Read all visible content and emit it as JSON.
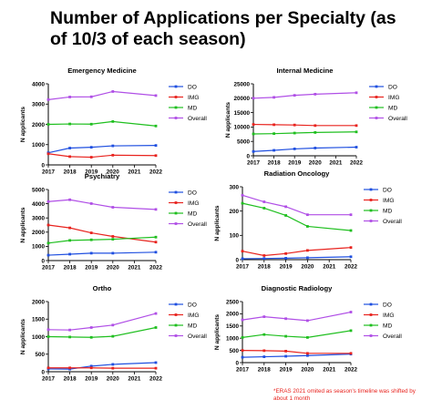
{
  "title": "Number of Applications per Specialty (as of 10/3 of each season)",
  "footnote": "*ERAS 2021 omited as  season's timeline was shifted by about 1 month",
  "colors": {
    "DO": "#1f4fe0",
    "IMG": "#e8231e",
    "MD": "#1fbf1f",
    "Overall": "#b04fe6"
  },
  "chart_data": [
    {
      "type": "line",
      "title": "Emergency Medicine",
      "ylabel": "N applicants",
      "x": [
        2017,
        2018,
        2019,
        2020,
        2022
      ],
      "xticks": [
        "2017",
        "2018",
        "2019",
        "2020",
        "2021",
        "2022"
      ],
      "xlim": [
        2017,
        2022
      ],
      "ylim": [
        0,
        4000
      ],
      "yticks": [
        "0",
        "1000",
        "2000",
        "3000",
        "4000"
      ],
      "grid": false,
      "legend": "right",
      "series": [
        {
          "name": "DO",
          "values": [
            600,
            830,
            870,
            940,
            960
          ]
        },
        {
          "name": "IMG",
          "values": [
            550,
            410,
            380,
            480,
            460
          ]
        },
        {
          "name": "MD",
          "values": [
            2000,
            2020,
            2010,
            2140,
            1920
          ]
        },
        {
          "name": "Overall",
          "values": [
            3220,
            3350,
            3360,
            3620,
            3420
          ]
        }
      ]
    },
    {
      "type": "line",
      "title": "Internal Medicine",
      "ylabel": "N applicants",
      "x": [
        2017,
        2018,
        2019,
        2020,
        2022
      ],
      "xticks": [
        "2017",
        "2018",
        "2019",
        "2020",
        "2021",
        "2022"
      ],
      "xlim": [
        2017,
        2022
      ],
      "ylim": [
        0,
        25000
      ],
      "yticks": [
        "0",
        "5000",
        "10000",
        "15000",
        "20000",
        "25000"
      ],
      "grid": false,
      "legend": "right",
      "series": [
        {
          "name": "DO",
          "values": [
            1500,
            1900,
            2400,
            2700,
            3000
          ]
        },
        {
          "name": "IMG",
          "values": [
            10900,
            10800,
            10700,
            10500,
            10500
          ]
        },
        {
          "name": "MD",
          "values": [
            7600,
            7700,
            7900,
            8100,
            8300
          ]
        },
        {
          "name": "Overall",
          "values": [
            20000,
            20300,
            21000,
            21400,
            21900
          ]
        }
      ]
    },
    {
      "type": "line",
      "title": "Psychiatry",
      "ylabel": "N applicants",
      "x": [
        2017,
        2018,
        2019,
        2020,
        2022
      ],
      "xticks": [
        "2017",
        "2018",
        "2019",
        "2020",
        "2021",
        "2022"
      ],
      "xlim": [
        2017,
        2022
      ],
      "ylim": [
        0,
        5000
      ],
      "yticks": [
        "0",
        "1000",
        "2000",
        "3000",
        "4000",
        "5000"
      ],
      "grid": false,
      "legend": "right",
      "series": [
        {
          "name": "DO",
          "values": [
            380,
            450,
            520,
            520,
            590
          ]
        },
        {
          "name": "IMG",
          "values": [
            2500,
            2300,
            1950,
            1700,
            1300
          ]
        },
        {
          "name": "MD",
          "values": [
            1230,
            1420,
            1460,
            1500,
            1650
          ]
        },
        {
          "name": "Overall",
          "values": [
            4150,
            4280,
            4010,
            3750,
            3600
          ]
        }
      ]
    },
    {
      "type": "line",
      "title": "Radiation Oncology",
      "ylabel": "N applicants",
      "x": [
        2017,
        2018,
        2019,
        2020,
        2022
      ],
      "xticks": [
        "2017",
        "2018",
        "2019",
        "2020",
        "2021",
        "2022"
      ],
      "xlim": [
        2017,
        2022
      ],
      "ylim": [
        0,
        300
      ],
      "yticks": [
        "0",
        "100",
        "200",
        "300"
      ],
      "grid": false,
      "legend": "right",
      "series": [
        {
          "name": "DO",
          "values": [
            4,
            5,
            6,
            8,
            12
          ]
        },
        {
          "name": "IMG",
          "values": [
            35,
            17,
            25,
            38,
            50
          ]
        },
        {
          "name": "MD",
          "values": [
            232,
            212,
            182,
            137,
            120
          ]
        },
        {
          "name": "Overall",
          "values": [
            265,
            238,
            218,
            185,
            185
          ]
        }
      ]
    },
    {
      "type": "line",
      "title": "Ortho",
      "ylabel": "N applicants",
      "x": [
        2017,
        2018,
        2019,
        2020,
        2022
      ],
      "xticks": [
        "2017",
        "2018",
        "2019",
        "2020",
        "2021",
        "2022"
      ],
      "xlim": [
        2017,
        2022
      ],
      "ylim": [
        0,
        2000
      ],
      "yticks": [
        "0",
        "500",
        "1000",
        "1500",
        "2000"
      ],
      "grid": false,
      "legend": "right",
      "series": [
        {
          "name": "DO",
          "values": [
            80,
            75,
            160,
            210,
            260
          ]
        },
        {
          "name": "IMG",
          "values": [
            110,
            110,
            110,
            100,
            100
          ]
        },
        {
          "name": "MD",
          "values": [
            1000,
            990,
            980,
            1010,
            1260
          ]
        },
        {
          "name": "Overall",
          "values": [
            1200,
            1190,
            1260,
            1330,
            1660
          ]
        }
      ]
    },
    {
      "type": "line",
      "title": "Diagnostic Radiology",
      "ylabel": "N applicants",
      "x": [
        2017,
        2018,
        2019,
        2020,
        2022
      ],
      "xticks": [
        "2017",
        "2018",
        "2019",
        "2020",
        "2021",
        "2022"
      ],
      "xlim": [
        2017,
        2022
      ],
      "ylim": [
        0,
        2500
      ],
      "yticks": [
        "0",
        "500",
        "1000",
        "1500",
        "2000",
        "2500"
      ],
      "grid": false,
      "legend": "right",
      "series": [
        {
          "name": "DO",
          "values": [
            220,
            240,
            260,
            290,
            350
          ]
        },
        {
          "name": "IMG",
          "values": [
            500,
            490,
            470,
            380,
            380
          ]
        },
        {
          "name": "MD",
          "values": [
            1030,
            1150,
            1080,
            1030,
            1310
          ]
        },
        {
          "name": "Overall",
          "values": [
            1750,
            1880,
            1800,
            1720,
            2070
          ]
        }
      ]
    }
  ]
}
